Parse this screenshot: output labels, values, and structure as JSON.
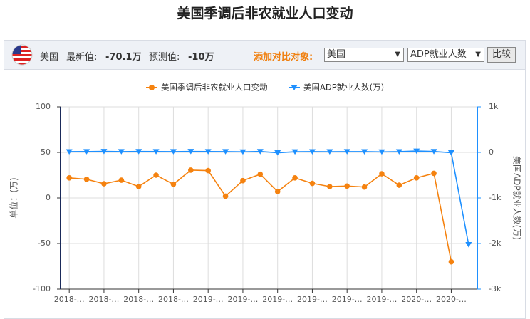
{
  "toolbar": {
    "country": "美国",
    "latest_label": "最新值:",
    "latest": "-70.1万",
    "forecast_label": "预测值:",
    "forecast": "-10万",
    "compare_label": "添加对比对象:",
    "select_country": "美国",
    "select_indicator": "ADP就业人数",
    "button": "比较"
  },
  "chart_data": {
    "type": "line",
    "title": "美国季调后非农就业人口变动",
    "categories": [
      "2018-…",
      null,
      "2018-…",
      null,
      "2018-…",
      null,
      "2018-…",
      null,
      "2019-…",
      null,
      "2019-…",
      null,
      "2019-…",
      null,
      "2019-…",
      null,
      "2019-…",
      null,
      "2019-…",
      null,
      "2020-…",
      null,
      "2020-…",
      null
    ],
    "series": [
      {
        "name": "美国季调后非农就业人口变动",
        "color": "#f5820f",
        "marker": "circle",
        "values": [
          22,
          20.5,
          15.6,
          19.5,
          12.5,
          25,
          15,
          30.5,
          30,
          2,
          19,
          26,
          7,
          22,
          16,
          12.5,
          13,
          12,
          26.5,
          14,
          22,
          27,
          -70.1,
          null
        ]
      },
      {
        "name": "美国ADP就业人数(万)",
        "color": "#1e90ff",
        "marker": "triangle-down",
        "axis": "y2",
        "values": [
          16,
          18,
          22,
          17,
          20,
          18,
          17,
          21,
          18,
          17,
          12,
          20,
          -8,
          14,
          16,
          15,
          17,
          16,
          11,
          16,
          30,
          20,
          -8,
          -2024
        ]
      }
    ],
    "ylabel": "单位：(万)",
    "y2label": "美国ADP就业人数(万)",
    "ylim": [
      -100,
      100
    ],
    "yticks": [
      100,
      50,
      0,
      -50,
      -100
    ],
    "y2lim": [
      -3000,
      1000
    ],
    "y2ticks": [
      {
        "value": 1000,
        "label": "1k"
      },
      0,
      {
        "value": -1000,
        "label": "-1k"
      },
      {
        "value": -2000,
        "label": "-2k"
      },
      {
        "value": -3000,
        "label": "-3k"
      }
    ],
    "grid": true,
    "legend": "top"
  }
}
